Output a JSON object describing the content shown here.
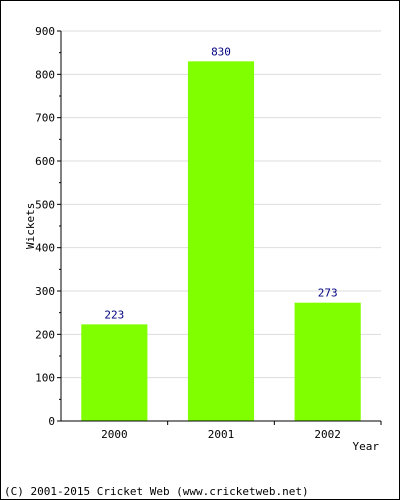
{
  "chart_data": {
    "type": "bar",
    "categories": [
      "2000",
      "2001",
      "2002"
    ],
    "values": [
      223,
      830,
      273
    ],
    "xlabel": "Year",
    "ylabel": "Wickets",
    "ylim": [
      0,
      900
    ],
    "yticks": [
      0,
      100,
      200,
      300,
      400,
      500,
      600,
      700,
      800,
      900
    ],
    "grid": true,
    "bar_color": "#80ff00",
    "data_label_color": "#000080",
    "grid_color": "#dddddd"
  },
  "footer": {
    "text": "(C) 2001-2015 Cricket Web (www.cricketweb.net)"
  }
}
